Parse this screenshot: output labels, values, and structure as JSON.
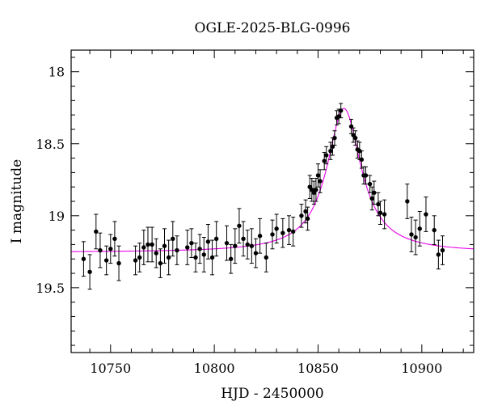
{
  "chart_data": {
    "type": "scatter",
    "title": "OGLE-2025-BLG-0996",
    "xlabel": "HJD - 2450000",
    "ylabel": "I magnitude",
    "xlim": [
      10731,
      10925
    ],
    "ylim": [
      19.95,
      17.85
    ],
    "y_inverted": true,
    "xticks": [
      10750,
      10800,
      10850,
      10900
    ],
    "xtick_labels": [
      "10750",
      "10800",
      "10850",
      "10900"
    ],
    "yticks": [
      18,
      18.5,
      19,
      19.5
    ],
    "ytick_labels": [
      "18",
      "18.5",
      "19",
      "19.5"
    ],
    "grid": false,
    "series": [
      {
        "kind": "points_with_errorbars",
        "color": "#000000",
        "points": [
          [
            10737,
            19.3,
            0.12
          ],
          [
            10740,
            19.39,
            0.12
          ],
          [
            10743,
            19.11,
            0.12
          ],
          [
            10745,
            19.24,
            0.12
          ],
          [
            10748,
            19.31,
            0.1
          ],
          [
            10750,
            19.23,
            0.1
          ],
          [
            10752,
            19.16,
            0.12
          ],
          [
            10754,
            19.33,
            0.12
          ],
          [
            10762,
            19.31,
            0.1
          ],
          [
            10764,
            19.29,
            0.1
          ],
          [
            10766,
            19.22,
            0.12
          ],
          [
            10768,
            19.2,
            0.12
          ],
          [
            10770,
            19.2,
            0.12
          ],
          [
            10772,
            19.26,
            0.1
          ],
          [
            10774,
            19.33,
            0.1
          ],
          [
            10776,
            19.21,
            0.12
          ],
          [
            10778,
            19.29,
            0.12
          ],
          [
            10780,
            19.16,
            0.12
          ],
          [
            10782,
            19.24,
            0.1
          ],
          [
            10787,
            19.22,
            0.12
          ],
          [
            10789,
            19.19,
            0.1
          ],
          [
            10791,
            19.29,
            0.1
          ],
          [
            10793,
            19.23,
            0.1
          ],
          [
            10795,
            19.27,
            0.12
          ],
          [
            10797,
            19.18,
            0.12
          ],
          [
            10799,
            19.29,
            0.12
          ],
          [
            10801,
            19.16,
            0.12
          ],
          [
            10806,
            19.19,
            0.12
          ],
          [
            10808,
            19.3,
            0.1
          ],
          [
            10810,
            19.21,
            0.12
          ],
          [
            10812,
            19.07,
            0.12
          ],
          [
            10814,
            19.16,
            0.12
          ],
          [
            10816,
            19.2,
            0.1
          ],
          [
            10818,
            19.21,
            0.12
          ],
          [
            10820,
            19.26,
            0.1
          ],
          [
            10822,
            19.14,
            0.12
          ],
          [
            10825,
            19.29,
            0.1
          ],
          [
            10828,
            19.13,
            0.1
          ],
          [
            10830,
            19.09,
            0.1
          ],
          [
            10833,
            19.12,
            0.1
          ],
          [
            10836,
            19.1,
            0.1
          ],
          [
            10838,
            19.11,
            0.1
          ],
          [
            10842,
            19.0,
            0.08
          ],
          [
            10844,
            18.97,
            0.08
          ],
          [
            10845,
            19.02,
            0.08
          ],
          [
            10846,
            18.8,
            0.08
          ],
          [
            10847,
            18.82,
            0.08
          ],
          [
            10848,
            18.84,
            0.08
          ],
          [
            10849,
            18.82,
            0.08
          ],
          [
            10850,
            18.72,
            0.08
          ],
          [
            10851,
            18.76,
            0.08
          ],
          [
            10853,
            18.62,
            0.06
          ],
          [
            10854,
            18.58,
            0.06
          ],
          [
            10856,
            18.55,
            0.06
          ],
          [
            10857,
            18.52,
            0.06
          ],
          [
            10858,
            18.46,
            0.05
          ],
          [
            10859,
            18.32,
            0.05
          ],
          [
            10860,
            18.31,
            0.05
          ],
          [
            10861,
            18.27,
            0.05
          ],
          [
            10866,
            18.38,
            0.05
          ],
          [
            10867,
            18.44,
            0.05
          ],
          [
            10868,
            18.46,
            0.05
          ],
          [
            10869,
            18.54,
            0.06
          ],
          [
            10870,
            18.55,
            0.06
          ],
          [
            10871,
            18.61,
            0.06
          ],
          [
            10872,
            18.72,
            0.06
          ],
          [
            10873,
            18.72,
            0.06
          ],
          [
            10875,
            18.78,
            0.06
          ],
          [
            10876,
            18.88,
            0.08
          ],
          [
            10877,
            18.84,
            0.08
          ],
          [
            10879,
            18.92,
            0.08
          ],
          [
            10880,
            18.98,
            0.08
          ],
          [
            10882,
            18.99,
            0.1
          ],
          [
            10893,
            18.9,
            0.12
          ],
          [
            10895,
            19.13,
            0.12
          ],
          [
            10897,
            19.15,
            0.12
          ],
          [
            10899,
            19.09,
            0.12
          ],
          [
            10902,
            18.99,
            0.12
          ],
          [
            10906,
            19.1,
            0.1
          ],
          [
            10908,
            19.27,
            0.1
          ],
          [
            10910,
            19.24,
            0.1
          ]
        ]
      },
      {
        "kind": "model_curve",
        "color": "#e800e8"
      }
    ]
  }
}
